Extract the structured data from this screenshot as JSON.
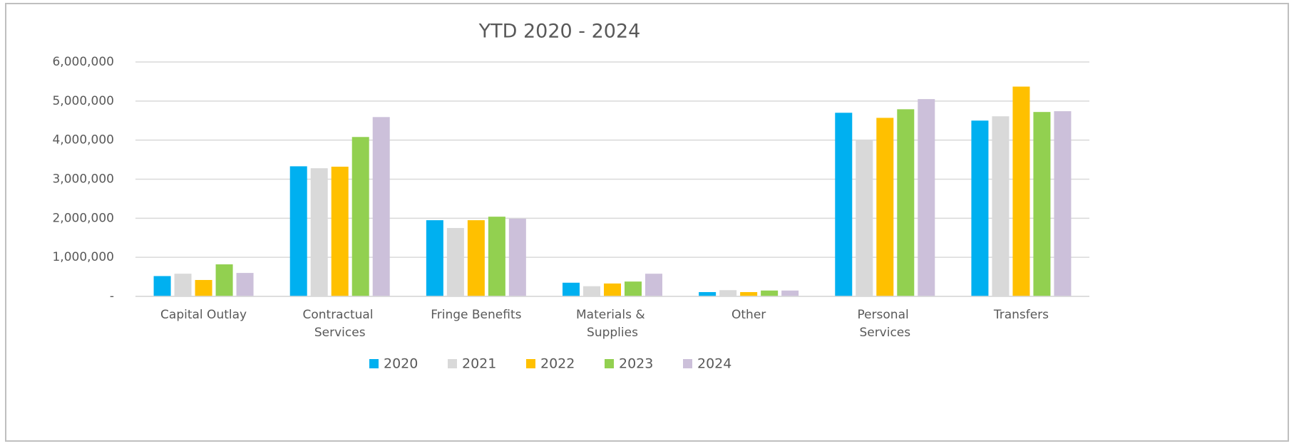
{
  "chart_data": {
    "type": "bar",
    "title": "YTD 2020 - 2024",
    "categories": [
      "Capital Outlay",
      "Contractual Services",
      "Fringe Benefits",
      "Materials & Supplies",
      "Other",
      "Personal Services",
      "Transfers"
    ],
    "series": [
      {
        "name": "2020",
        "color": "#00b0f0",
        "values": [
          520000,
          3330000,
          1950000,
          350000,
          110000,
          4700000,
          4500000
        ]
      },
      {
        "name": "2021",
        "color": "#d9d9d9",
        "values": [
          580000,
          3280000,
          1750000,
          260000,
          160000,
          4010000,
          4610000
        ]
      },
      {
        "name": "2022",
        "color": "#ffc000",
        "values": [
          420000,
          3320000,
          1950000,
          330000,
          110000,
          4570000,
          5370000
        ]
      },
      {
        "name": "2023",
        "color": "#92d050",
        "values": [
          820000,
          4080000,
          2040000,
          380000,
          150000,
          4790000,
          4720000
        ]
      },
      {
        "name": "2024",
        "color": "#ccc0da",
        "values": [
          600000,
          4590000,
          1990000,
          580000,
          150000,
          5050000,
          4740000
        ]
      }
    ],
    "ylim": [
      0,
      6000000
    ],
    "yticks": [
      {
        "value": 0,
        "label": "-"
      },
      {
        "value": 1000000,
        "label": "1,000,000"
      },
      {
        "value": 2000000,
        "label": "2,000,000"
      },
      {
        "value": 3000000,
        "label": "3,000,000"
      },
      {
        "value": 4000000,
        "label": "4,000,000"
      },
      {
        "value": 5000000,
        "label": "5,000,000"
      },
      {
        "value": 6000000,
        "label": "6,000,000"
      }
    ],
    "grid": true,
    "legend": "bottom"
  }
}
